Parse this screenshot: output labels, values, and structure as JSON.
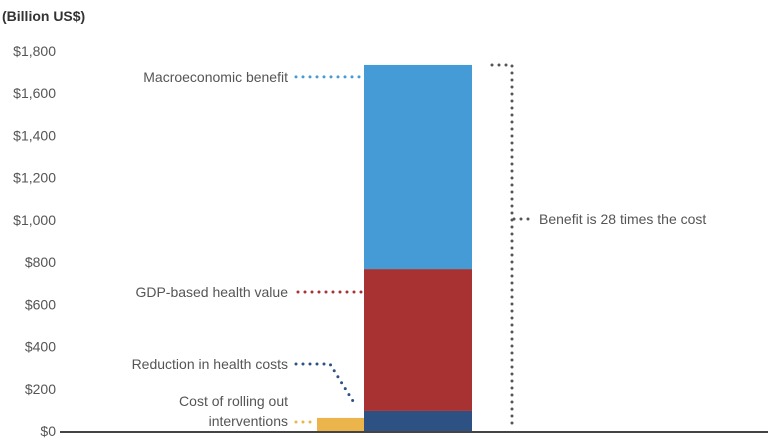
{
  "chart_data": {
    "type": "bar",
    "stacked": true,
    "ylabel": "(Billion US$)",
    "ylim": [
      0,
      1800
    ],
    "yticks": [
      "$0",
      "$200",
      "$400",
      "$600",
      "$800",
      "$1,000",
      "$1,200",
      "$1,400",
      "$1,600",
      "$1,800"
    ],
    "ytick_values": [
      0,
      200,
      400,
      600,
      800,
      1000,
      1200,
      1400,
      1600,
      1800
    ],
    "grid": false,
    "benefit_stack": [
      {
        "name": "Reduction in health costs",
        "value": 95,
        "color": "#2d5183"
      },
      {
        "name": "GDP-based health value",
        "value": 672,
        "color": "#a83232"
      },
      {
        "name": "Macroeconomic benefit",
        "value": 967,
        "color": "#459bd6"
      }
    ],
    "cost_bar": {
      "name_line1": "Cost of rolling out",
      "name_line2": "interventions",
      "value": 62,
      "color": "#ecb54b"
    },
    "annotation": "Benefit is 28 times the cost",
    "annotation_color": "#555555"
  }
}
